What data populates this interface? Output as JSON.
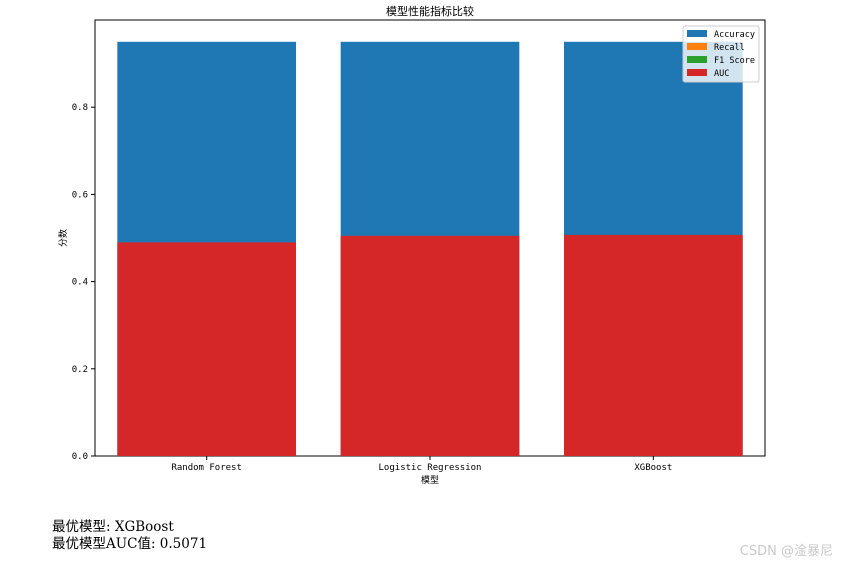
{
  "chart_data": {
    "type": "bar",
    "title": "模型性能指标比较",
    "xlabel": "模型",
    "ylabel": "分数",
    "categories": [
      "Random Forest",
      "Logistic Regression",
      "XGBoost"
    ],
    "series": [
      {
        "name": "Accuracy",
        "color": "#1f77b4",
        "values": [
          0.95,
          0.95,
          0.95
        ]
      },
      {
        "name": "Recall",
        "color": "#ff7f0e",
        "values": [
          0.0,
          0.0,
          0.0
        ]
      },
      {
        "name": "F1 Score",
        "color": "#2ca02c",
        "values": [
          0.0,
          0.0,
          0.0
        ]
      },
      {
        "name": "AUC",
        "color": "#d62728",
        "values": [
          0.49,
          0.505,
          0.5071
        ]
      }
    ],
    "ylim": [
      0,
      1.0
    ],
    "yticks": [
      "0.0",
      "0.2",
      "0.4",
      "0.6",
      "0.8"
    ],
    "grid": false,
    "legend": "top-right"
  },
  "summary": {
    "best_model_line": "最优模型: XGBoost",
    "best_auc_line": "最优模型AUC值: 0.5071"
  },
  "watermark": "CSDN @淦暴尼"
}
